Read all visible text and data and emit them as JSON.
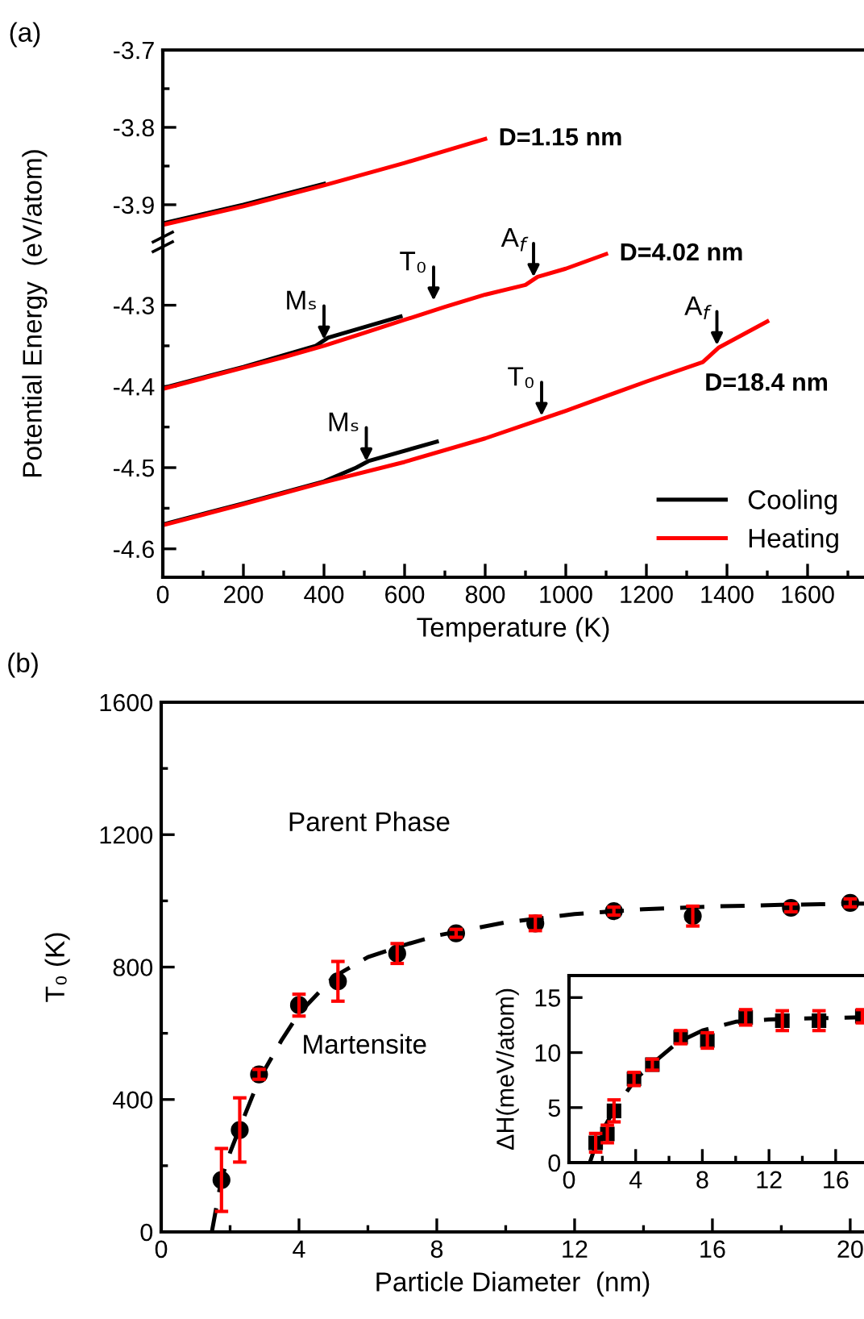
{
  "chart_data": [
    {
      "type": "line",
      "xlim": [
        0,
        1740
      ],
      "ylim": [
        -3.948,
        -3.7
      ],
      "yticks": [
        -3.7,
        {
          "value": -3.75,
          "label": null
        },
        -3.8,
        {
          "value": -3.85,
          "label": null
        },
        -3.9
      ],
      "tick_labels": "y",
      "marker": "none",
      "series": [
        {
          "color": "#000000",
          "x": [
            0,
            200,
            400
          ],
          "values": [
            -3.924,
            -3.9,
            -3.873
          ]
        },
        {
          "color": "#ff0000",
          "x": [
            0,
            200,
            400,
            600,
            800
          ],
          "values": [
            -3.926,
            -3.902,
            -3.875,
            -3.846,
            -3.815
          ]
        }
      ],
      "annotations": [
        "(a)",
        {
          "text": "D=1.15 nm",
          "x": 800,
          "y": -3.815
        }
      ]
    },
    {
      "type": "line",
      "xlabel": "Temperature (K)",
      "ylabel": "Potential Energy  (eV/atom)",
      "xlim": [
        0,
        1740
      ],
      "ylim": [
        -4.635,
        -4.222
      ],
      "yticks": [
        -4.3,
        {
          "value": -4.35,
          "label": null
        },
        -4.4,
        {
          "value": -4.45,
          "label": null
        },
        -4.5,
        {
          "value": -4.55,
          "label": null
        },
        -4.6
      ],
      "xticks": [
        0,
        {
          "value": 100,
          "label": null
        },
        200,
        {
          "value": 300,
          "label": null
        },
        400,
        {
          "value": 500,
          "label": null
        },
        600,
        {
          "value": 700,
          "label": null
        },
        800,
        {
          "value": 900,
          "label": null
        },
        1000,
        {
          "value": 1100,
          "label": null
        },
        1200,
        {
          "value": 1300,
          "label": null
        },
        1400,
        {
          "value": 1500,
          "label": null
        },
        1600,
        {
          "value": 1700,
          "label": null
        }
      ],
      "marker": "none",
      "legend": "lower right",
      "series": [
        {
          "color": "#000000",
          "x": [
            0,
            200,
            380,
            410,
            590
          ],
          "values": [
            -4.402,
            -4.376,
            -4.35,
            -4.34,
            -4.314
          ]
        },
        {
          "color": "#ff0000",
          "x": [
            0,
            100,
            200,
            300,
            400,
            500,
            600,
            700,
            800,
            900,
            930,
            1000,
            1100
          ],
          "values": [
            -4.403,
            -4.39,
            -4.377,
            -4.364,
            -4.35,
            -4.334,
            -4.318,
            -4.302,
            -4.287,
            -4.275,
            -4.265,
            -4.255,
            -4.237
          ]
        },
        {
          "name": "Cooling",
          "color": "#000000",
          "x": [
            0,
            200,
            400,
            480,
            510,
            680
          ],
          "values": [
            -4.57,
            -4.544,
            -4.517,
            -4.5,
            -4.492,
            -4.468
          ]
        },
        {
          "name": "Heating",
          "color": "#ff0000",
          "x": [
            0,
            200,
            400,
            600,
            800,
            1000,
            1200,
            1340,
            1380,
            1500
          ],
          "values": [
            -4.571,
            -4.545,
            -4.518,
            -4.493,
            -4.464,
            -4.43,
            -4.394,
            -4.37,
            -4.352,
            -4.32
          ]
        }
      ],
      "annotations": [
        {
          "text": "Mₛ",
          "x": 400,
          "y": -4.345
        },
        {
          "text": "T₀",
          "x": 672,
          "y": -4.297
        },
        {
          "text": "A$_{f}$",
          "x": 920,
          "y": -4.268
        },
        {
          "text": "D=4.02 nm",
          "x": 1100,
          "y": -4.237
        },
        {
          "text": "Mₛ",
          "x": 505,
          "y": -4.495
        },
        {
          "text": "T₀",
          "x": 940,
          "y": -4.439
        },
        {
          "text": "A$_{f}$",
          "x": 1375,
          "y": -4.352
        },
        {
          "text": "D=18.4 nm",
          "x": 1500,
          "y": -4.32
        }
      ]
    },
    {
      "type": "scatter",
      "xlabel": "Particle Diameter  (nm)",
      "ylabel": "T₀ (K)",
      "xlim": [
        0,
        20.4
      ],
      "ylim": [
        0,
        1600
      ],
      "xticks": [
        0,
        {
          "value": 2,
          "label": null
        },
        4,
        {
          "value": 6,
          "label": null
        },
        8,
        {
          "value": 10,
          "label": null
        },
        12,
        {
          "value": 14,
          "label": null
        },
        16,
        {
          "value": 18,
          "label": null
        },
        20
      ],
      "yticks": [
        0,
        {
          "value": 200,
          "label": null
        },
        400,
        {
          "value": 600,
          "label": null
        },
        800,
        {
          "value": 1000,
          "label": null
        },
        1200,
        {
          "value": 1400,
          "label": null
        },
        1600
      ],
      "series": [
        {
          "type": "scatter",
          "marker": "circle",
          "color": "#000000",
          "x": [
            1.75,
            2.28,
            2.84,
            4.0,
            5.13,
            6.85,
            8.56,
            10.86,
            13.14,
            15.43,
            18.28,
            20.0
          ],
          "values": [
            157,
            308,
            476,
            685,
            757,
            841,
            902,
            932,
            969,
            954,
            979,
            994
          ],
          "errors": [
            95,
            97,
            15,
            33,
            60,
            30,
            12,
            22,
            12,
            30,
            12,
            12
          ]
        },
        {
          "type": "line",
          "line_style": "dashed",
          "marker": "none",
          "color": "#000000",
          "x": [
            1.47,
            1.75,
            2.0,
            2.3,
            2.84,
            3.5,
            4,
            5,
            6,
            7,
            8,
            10,
            12,
            14,
            16,
            18,
            20.4
          ],
          "values": [
            0,
            160,
            240,
            320,
            460,
            580,
            660,
            770,
            830,
            865,
            895,
            935,
            960,
            975,
            983,
            988,
            992
          ]
        }
      ],
      "annotations": [
        "(b)",
        "Parent Phase",
        "Martensite"
      ]
    },
    {
      "type": "scatter",
      "ylabel": "ΔH(meV/atom)",
      "xlim": [
        0,
        17.7
      ],
      "ylim": [
        0,
        17
      ],
      "xticks": [
        0,
        {
          "value": 2,
          "label": null
        },
        4,
        {
          "value": 6,
          "label": null
        },
        8,
        {
          "value": 10,
          "label": null
        },
        12,
        {
          "value": 14,
          "label": null
        },
        16
      ],
      "yticks": [
        0,
        5,
        10,
        15
      ],
      "series": [
        {
          "type": "scatter",
          "marker": "square",
          "color": "#000000",
          "x": [
            1.6,
            2.3,
            2.7,
            3.9,
            5.0,
            6.7,
            8.3,
            10.6,
            12.8,
            15.0,
            17.6
          ],
          "values": [
            1.8,
            2.6,
            4.7,
            7.6,
            8.9,
            11.4,
            11.1,
            13.2,
            12.9,
            12.9,
            13.3
          ],
          "errors": [
            0.85,
            0.8,
            1.0,
            0.6,
            0.5,
            0.6,
            0.7,
            0.7,
            0.9,
            0.9,
            0.6
          ]
        },
        {
          "type": "line",
          "line_style": "dashed",
          "marker": "none",
          "color": "#000000",
          "x": [
            1.25,
            1.6,
            2,
            2.75,
            4,
            5,
            6.5,
            8,
            10,
            12,
            14,
            17.7
          ],
          "values": [
            0,
            1.6,
            2.9,
            4.9,
            7.6,
            9.0,
            10.9,
            12.0,
            12.8,
            13.0,
            13.1,
            13.2
          ]
        }
      ]
    }
  ]
}
